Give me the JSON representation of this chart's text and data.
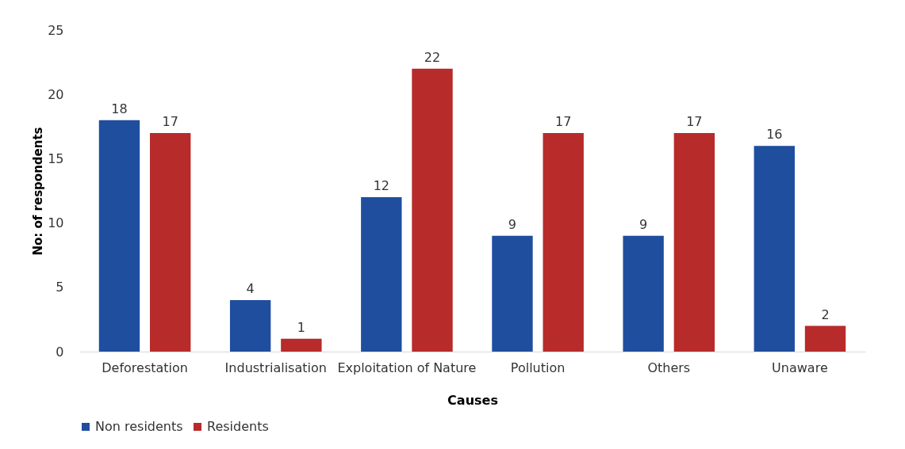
{
  "chart_data": {
    "type": "bar",
    "xlabel": "Causes",
    "ylabel": "No: of respondents",
    "categories": [
      "Deforestation",
      "Industrialisation",
      "Exploitation of Nature",
      "Pollution",
      "Others",
      "Unaware"
    ],
    "series": [
      {
        "name": "Non residents",
        "color": "#1f4e9e",
        "values": [
          18,
          4,
          12,
          9,
          9,
          16
        ]
      },
      {
        "name": "Residents",
        "color": "#b72b2b",
        "values": [
          17,
          1,
          22,
          17,
          17,
          2
        ]
      }
    ],
    "ylim": [
      0,
      25
    ],
    "yticks": [
      0,
      5,
      10,
      15,
      20,
      25
    ],
    "grid": false,
    "legend": "bottom",
    "data_labels": true
  }
}
